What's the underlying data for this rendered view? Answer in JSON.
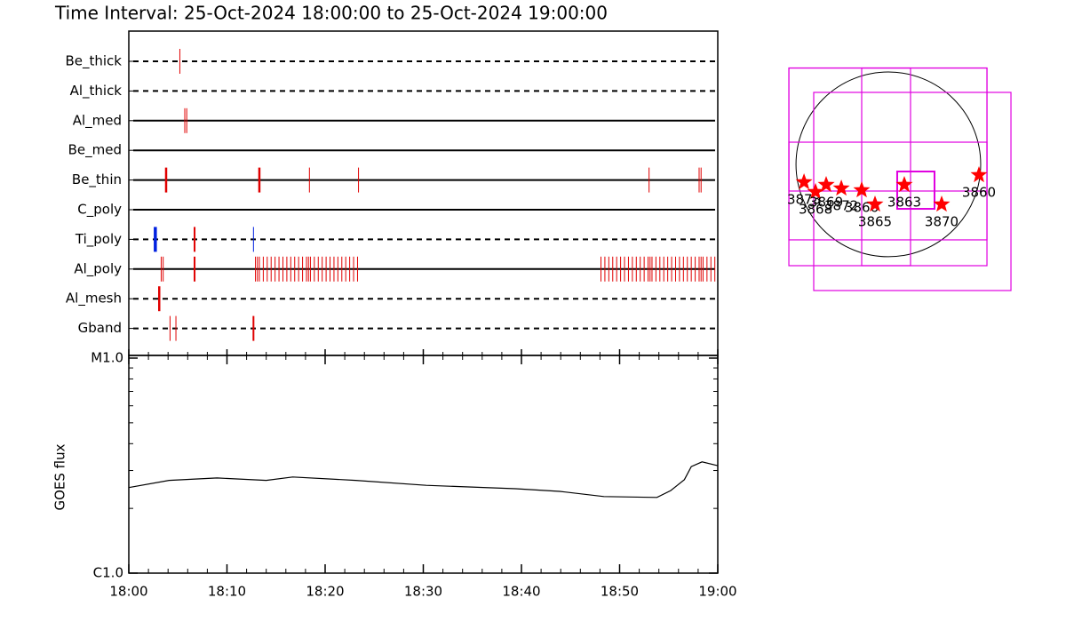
{
  "chart_data": [
    {
      "type": "timeline",
      "title": "Time Interval: 25-Oct-2024 18:00:00 to 25-Oct-2024 19:00:00",
      "xlim": [
        0,
        60
      ],
      "rows": [
        {
          "name": "Be_thick",
          "line": "dashed",
          "marks": [
            {
              "color": "#e00000",
              "width": 1,
              "values": [
                5.2
              ]
            }
          ]
        },
        {
          "name": "Al_thick",
          "line": "dashed",
          "marks": []
        },
        {
          "name": "Al_med",
          "line": "solid",
          "marks": [
            {
              "color": "#e00000",
              "width": 1,
              "values": [
                5.7,
                5.9
              ]
            }
          ]
        },
        {
          "name": "Be_med",
          "line": "solid",
          "marks": []
        },
        {
          "name": "Be_thin",
          "line": "solid",
          "marks": [
            {
              "color": "#e00000",
              "width": 2.5,
              "values": [
                3.8,
                13.3
              ]
            },
            {
              "color": "#e00000",
              "width": 1,
              "values": [
                18.4,
                23.4,
                53.0,
                58.1,
                58.3
              ]
            }
          ]
        },
        {
          "name": "C_poly",
          "line": "solid",
          "marks": []
        },
        {
          "name": "Ti_poly",
          "line": "dashed",
          "marks": [
            {
              "color": "#0020e0",
              "width": 3.5,
              "values": [
                2.7
              ]
            },
            {
              "color": "#e00000",
              "width": 2,
              "values": [
                6.7
              ]
            },
            {
              "color": "#0020e0",
              "width": 1,
              "values": [
                12.7
              ]
            }
          ]
        },
        {
          "name": "Al_poly",
          "line": "solid",
          "marks": [
            {
              "color": "#e00000",
              "width": 2,
              "values": [
                6.7
              ]
            },
            {
              "color": "#e00000",
              "width": 1,
              "values": [
                3.3,
                3.5,
                12.9,
                13.1,
                13.3,
                13.7,
                14.1,
                14.5,
                14.9,
                15.3,
                15.7,
                16.1,
                16.5,
                16.9,
                17.3,
                17.7,
                18.1,
                18.3,
                18.5,
                18.9,
                19.3,
                19.7,
                20.1,
                20.5,
                20.9,
                21.3,
                21.7,
                22.1,
                22.5,
                22.9,
                23.3,
                48.1,
                48.5,
                48.9,
                49.3,
                49.7,
                50.1,
                50.5,
                50.9,
                51.3,
                51.7,
                52.1,
                52.5,
                52.9,
                53.1,
                53.3,
                53.7,
                54.1,
                54.5,
                54.9,
                55.3,
                55.7,
                56.1,
                56.5,
                56.9,
                57.3,
                57.7,
                58.1,
                58.3,
                58.5,
                58.9,
                59.3,
                59.7
              ]
            }
          ]
        },
        {
          "name": "Al_mesh",
          "line": "dashed",
          "marks": [
            {
              "color": "#e00000",
              "width": 2.5,
              "values": [
                3.1
              ]
            }
          ]
        },
        {
          "name": "Gband",
          "line": "dashed",
          "marks": [
            {
              "color": "#e00000",
              "width": 1,
              "values": [
                4.2,
                4.8
              ]
            },
            {
              "color": "#e00000",
              "width": 2,
              "values": [
                12.7
              ]
            }
          ]
        }
      ]
    },
    {
      "type": "line",
      "y_label": "GOES flux",
      "log_y": true,
      "color": "#000000",
      "x": [
        0,
        4.1,
        9.0,
        14.0,
        16.7,
        23.1,
        30.3,
        39.4,
        43.9,
        48.4,
        53.8,
        55.2,
        56.6,
        57.3,
        58.4,
        60.0
      ],
      "values": [
        2.5e-06,
        2.7e-06,
        2.77e-06,
        2.7e-06,
        2.8e-06,
        2.7e-06,
        2.56e-06,
        2.47e-06,
        2.4e-06,
        2.27e-06,
        2.25e-06,
        2.42e-06,
        2.72e-06,
        3.13e-06,
        3.29e-06,
        3.16e-06
      ],
      "xlim": [
        0,
        60
      ],
      "xticks": [
        {
          "value": 0,
          "label": "18:00"
        },
        {
          "value": 10,
          "label": "18:10"
        },
        {
          "value": 20,
          "label": "18:20"
        },
        {
          "value": 30,
          "label": "18:30"
        },
        {
          "value": 40,
          "label": "18:40"
        },
        {
          "value": 50,
          "label": "18:50"
        },
        {
          "value": 60,
          "label": "19:00"
        }
      ],
      "minor_xticks": [
        2,
        4,
        6,
        8,
        12,
        14,
        16,
        18,
        22,
        24,
        26,
        28,
        32,
        34,
        36,
        38,
        42,
        44,
        46,
        48,
        52,
        54,
        56,
        58
      ],
      "ylim": [
        1e-06,
        1e-05
      ],
      "yticks": [
        {
          "value": 1e-06,
          "label": "C1.0"
        },
        {
          "value": 1e-05,
          "label": "M1.0"
        }
      ],
      "minor_yticks": [
        2e-06,
        3e-06,
        4e-06,
        5e-06,
        6e-06,
        7e-06,
        8e-06,
        9e-06
      ]
    },
    {
      "type": "scatter",
      "color": "#ff0000",
      "box_color": "#e000e0",
      "limb_radius": 970,
      "xlim": [
        -1120,
        1353
      ],
      "ylim": [
        -1400,
        1073
      ],
      "x": [
        -886,
        -765,
        -653,
        -494,
        -280,
        -140,
        168,
        560,
        952
      ],
      "y": [
        -187,
        -289,
        -215,
        -252,
        -271,
        -420,
        -215,
        -420,
        -112
      ],
      "labels": [
        "3873",
        "3868",
        "3869",
        "3872",
        "3866",
        "3865",
        "3863",
        "3870",
        "3860"
      ],
      "boxes": [
        [
          -1045,
          1036,
          -1064,
          1012
        ],
        [
          -784,
          1288,
          -1325,
          756
        ],
        [
          -280,
          233,
          -1064,
          1012
        ],
        [
          -1045,
          1036,
          -793,
          233
        ],
        [
          -1045,
          1036,
          -280,
          1012
        ],
        [
          93,
          485,
          -467,
          -75
        ]
      ]
    }
  ]
}
